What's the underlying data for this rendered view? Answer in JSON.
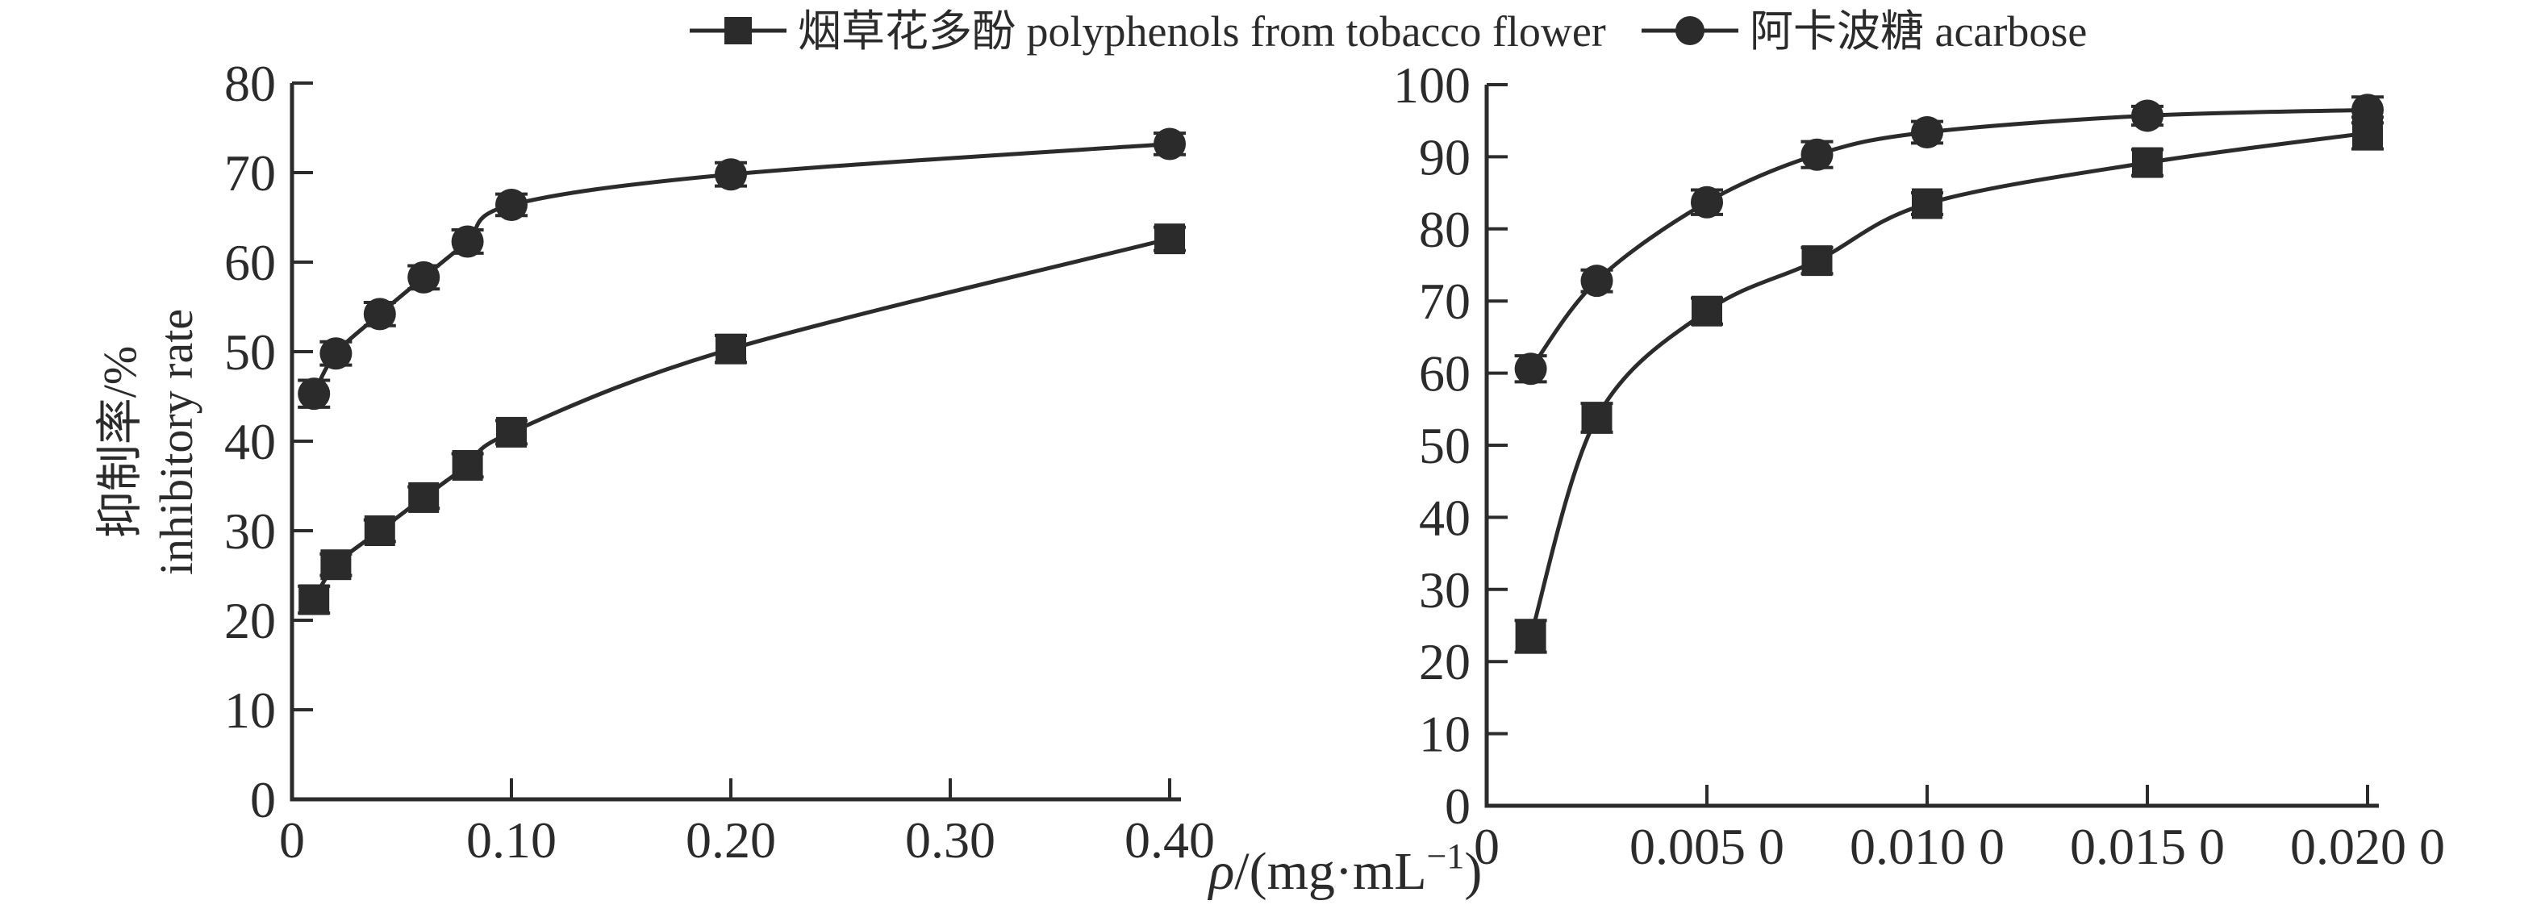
{
  "style": {
    "ink": "#2b2b2b",
    "background": "#ffffff"
  },
  "legend": {
    "items": [
      {
        "label": "烟草花多酚 polyphenols from tobacco flower",
        "marker": "square"
      },
      {
        "label": "阿卡波糖 acarbose",
        "marker": "circle"
      }
    ]
  },
  "axis_labels": {
    "y_line1": "抑制率/%",
    "y_line2": "inhibitory rate",
    "x_rho": "ρ",
    "x_after_rho": "/(mg·mL",
    "x_sup": "−1",
    "x_suffix": ")"
  },
  "chart_data": [
    {
      "type": "line",
      "name": "alpha-amylase-inhibition-chart",
      "xlabel": "ρ/(mg·mL−1)",
      "ylabel": "抑制率/% inhibitory rate",
      "xlim": [
        0,
        0.4
      ],
      "ylim": [
        0,
        80
      ],
      "grid": false,
      "x_ticks": {
        "values": [
          0,
          0.1,
          0.2,
          0.3,
          0.4
        ],
        "labels": [
          "0",
          "0.10",
          "0.20",
          "0.30",
          "0.40"
        ]
      },
      "y_ticks": {
        "values": [
          0,
          10,
          20,
          30,
          40,
          50,
          60,
          70,
          80
        ],
        "labels": [
          "0",
          "10",
          "20",
          "30",
          "40",
          "50",
          "60",
          "70",
          "80"
        ]
      },
      "series": [
        {
          "name": "polyphenols from tobacco flower",
          "marker": "square",
          "x": [
            0.01,
            0.02,
            0.04,
            0.06,
            0.08,
            0.1,
            0.2,
            0.4
          ],
          "y": [
            22.3,
            26.2,
            30.0,
            33.7,
            37.3,
            41.0,
            50.3,
            62.6
          ],
          "err": [
            1.5,
            1.2,
            1.2,
            1.2,
            1.3,
            1.3,
            1.5,
            1.3
          ]
        },
        {
          "name": "acarbose",
          "marker": "circle",
          "x": [
            0.01,
            0.02,
            0.04,
            0.06,
            0.08,
            0.1,
            0.2,
            0.4
          ],
          "y": [
            45.3,
            49.8,
            54.2,
            58.3,
            62.3,
            66.4,
            69.8,
            73.2
          ],
          "err": [
            1.5,
            1.3,
            1.3,
            1.3,
            1.3,
            1.2,
            1.3,
            1.2
          ]
        }
      ]
    },
    {
      "type": "line",
      "name": "alpha-glucosidase-inhibition-chart",
      "xlabel": "ρ/(mg·mL−1)",
      "ylabel": "抑制率/% inhibitory rate",
      "xlim": [
        0,
        0.02
      ],
      "ylim": [
        0,
        100
      ],
      "grid": false,
      "x_ticks": {
        "values": [
          0,
          0.005,
          0.01,
          0.015,
          0.02
        ],
        "labels": [
          "0",
          "0.005 0",
          "0.010 0",
          "0.015 0",
          "0.020 0"
        ]
      },
      "y_ticks": {
        "values": [
          0,
          10,
          20,
          30,
          40,
          50,
          60,
          70,
          80,
          90,
          100
        ],
        "labels": [
          "0",
          "10",
          "20",
          "30",
          "40",
          "50",
          "60",
          "70",
          "80",
          "90",
          "100"
        ]
      },
      "series": [
        {
          "name": "polyphenols from tobacco flower",
          "marker": "square",
          "x": [
            0.001,
            0.0025,
            0.005,
            0.0075,
            0.01,
            0.015,
            0.02
          ],
          "y": [
            23.5,
            53.8,
            68.6,
            75.6,
            83.5,
            89.2,
            93.3
          ],
          "err": [
            2.2,
            2.0,
            1.8,
            1.8,
            1.5,
            1.8,
            2.2
          ]
        },
        {
          "name": "acarbose",
          "marker": "circle",
          "x": [
            0.001,
            0.0025,
            0.005,
            0.0075,
            0.01,
            0.015,
            0.02
          ],
          "y": [
            60.6,
            72.8,
            83.7,
            90.3,
            93.4,
            95.7,
            96.5
          ],
          "err": [
            1.8,
            1.5,
            1.7,
            1.8,
            1.5,
            1.3,
            1.8
          ]
        }
      ]
    }
  ]
}
